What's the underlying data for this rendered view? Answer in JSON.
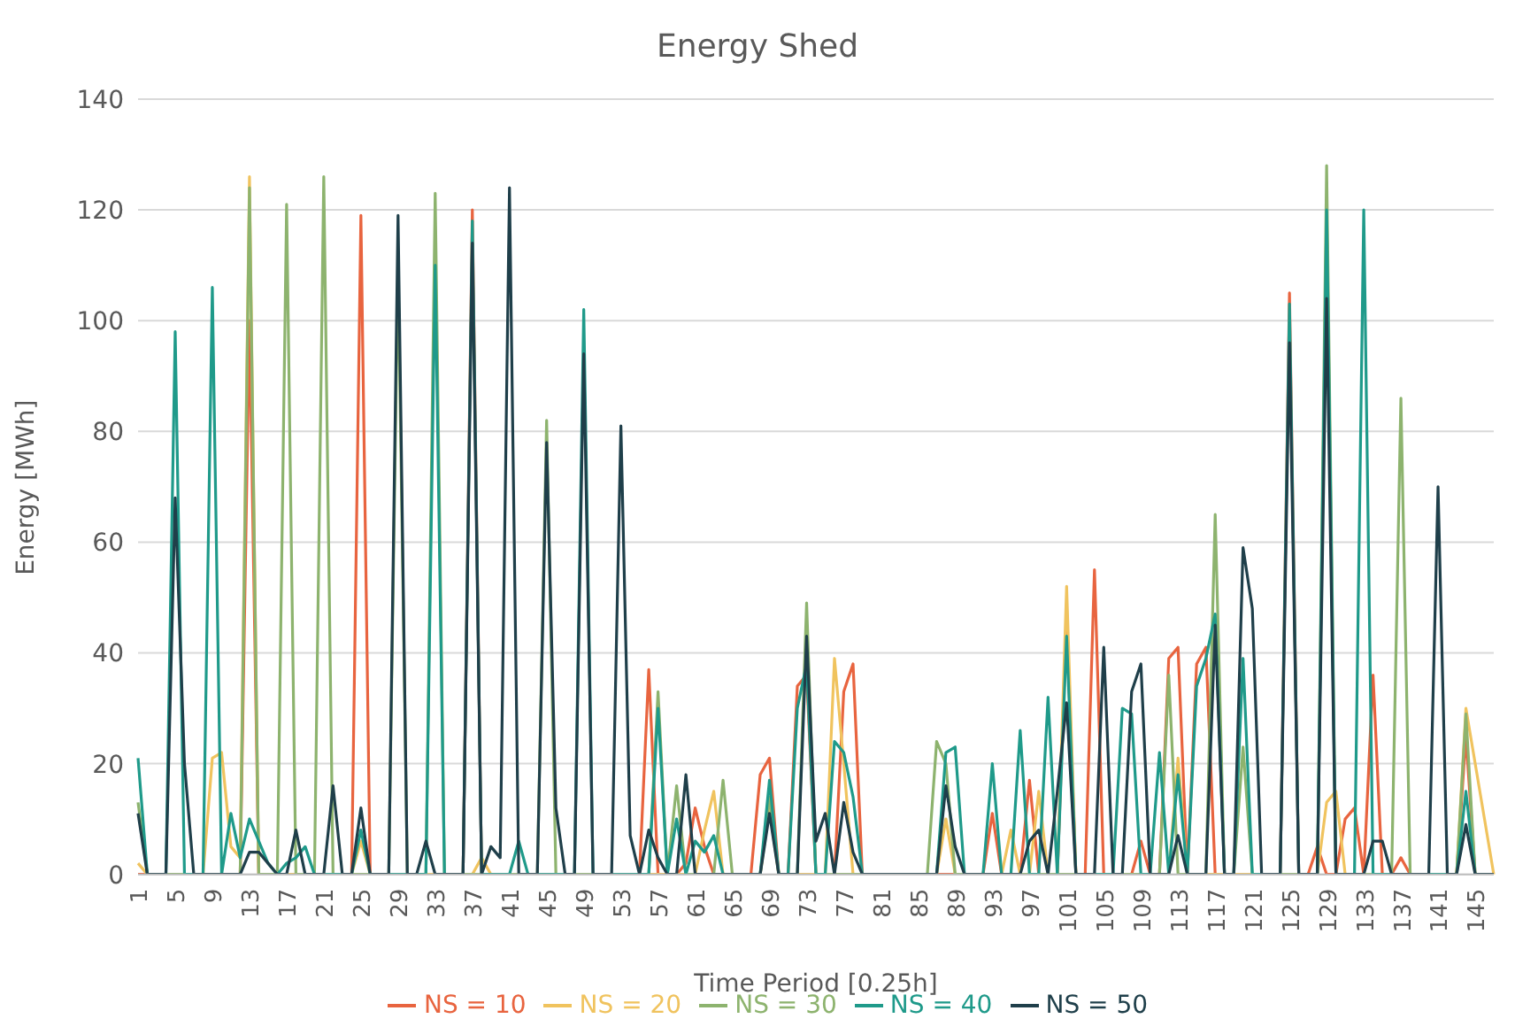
{
  "chart_data": {
    "type": "line",
    "title": "Energy Shed",
    "xlabel": "Time Period [0.25h]",
    "ylabel": "Energy [MWh]",
    "categories": [
      "1",
      null,
      null,
      null,
      "5",
      null,
      null,
      null,
      "9",
      null,
      null,
      null,
      "13",
      null,
      null,
      null,
      "17",
      null,
      null,
      null,
      "21",
      null,
      null,
      null,
      "25",
      null,
      null,
      null,
      "29",
      null,
      null,
      null,
      "33",
      null,
      null,
      null,
      "37",
      null,
      null,
      null,
      "41",
      null,
      null,
      null,
      "45",
      null,
      null,
      null,
      "49",
      null,
      null,
      null,
      "53",
      null,
      null,
      null,
      "57",
      null,
      null,
      null,
      "61",
      null,
      null,
      null,
      "65",
      null,
      null,
      null,
      "69",
      null,
      null,
      null,
      "73",
      null,
      null,
      null,
      "77",
      null,
      null,
      null,
      "81",
      null,
      null,
      null,
      "85",
      null,
      null,
      null,
      "89",
      null,
      null,
      null,
      "93",
      null,
      null,
      null,
      "97",
      null,
      null,
      null,
      "101",
      null,
      null,
      null,
      "105",
      null,
      null,
      null,
      "109",
      null,
      null,
      null,
      "113",
      null,
      null,
      null,
      "117",
      null,
      null,
      null,
      "121",
      null,
      null,
      null,
      "125",
      null,
      null,
      null,
      "129",
      null,
      null,
      null,
      "133",
      null,
      null,
      null,
      "137",
      null,
      null,
      null,
      "141",
      null,
      null,
      null,
      "145",
      null,
      null
    ],
    "series": [
      {
        "name": "NS = 10",
        "color": "#e8643f",
        "values": [
          0,
          0,
          0,
          0,
          0,
          0,
          0,
          0,
          0,
          0,
          0,
          0,
          100,
          0,
          0,
          0,
          0,
          0,
          0,
          0,
          0,
          0,
          0,
          0,
          119,
          0,
          0,
          0,
          0,
          0,
          0,
          0,
          0,
          0,
          0,
          0,
          120,
          0,
          0,
          0,
          null,
          0,
          0,
          0,
          0,
          0,
          0,
          0,
          0,
          0,
          0,
          0,
          0,
          0,
          0,
          37,
          0,
          0,
          0,
          2,
          12,
          5,
          0,
          0,
          0,
          0,
          0,
          18,
          21,
          0,
          0,
          34,
          36,
          0,
          0,
          0,
          33,
          38,
          0,
          0,
          0,
          0,
          0,
          0,
          0,
          0,
          0,
          0,
          0,
          0,
          0,
          0,
          11,
          0,
          0,
          0,
          17,
          0,
          0,
          0,
          46,
          0,
          0,
          55,
          0,
          0,
          0,
          0,
          6,
          0,
          0,
          39,
          41,
          0,
          38,
          41,
          0,
          0,
          0,
          0,
          0,
          0,
          0,
          0,
          105,
          0,
          0,
          5,
          0,
          0,
          10,
          12,
          0,
          36,
          0,
          0,
          3,
          0,
          0,
          0,
          0,
          0,
          0,
          25,
          0,
          0,
          0
        ]
      },
      {
        "name": "NS = 20",
        "color": "#f0c35e",
        "values": [
          2,
          0,
          0,
          0,
          null,
          0,
          0,
          0,
          21,
          22,
          5,
          3,
          126,
          0,
          0,
          0,
          0,
          0,
          0,
          0,
          0,
          0,
          0,
          0,
          6,
          0,
          0,
          0,
          0,
          0,
          0,
          0,
          0,
          0,
          0,
          0,
          0,
          3,
          0,
          0,
          0,
          0,
          0,
          0,
          0,
          0,
          0,
          0,
          0,
          0,
          0,
          0,
          0,
          0,
          0,
          0,
          0,
          0,
          0,
          0,
          0,
          8,
          15,
          0,
          0,
          0,
          0,
          0,
          12,
          0,
          0,
          0,
          0,
          0,
          0,
          39,
          20,
          0,
          0,
          0,
          0,
          0,
          0,
          0,
          0,
          0,
          0,
          10,
          0,
          0,
          0,
          0,
          0,
          0,
          8,
          0,
          0,
          15,
          0,
          0,
          52,
          0,
          0,
          0,
          0,
          0,
          0,
          0,
          0,
          0,
          0,
          0,
          21,
          0,
          0,
          0,
          0,
          0,
          0,
          0,
          0,
          0,
          0,
          0,
          0,
          0,
          0,
          0,
          13,
          15,
          0,
          0,
          0,
          0,
          0,
          0,
          0,
          0,
          0,
          0,
          0,
          0,
          0,
          30,
          20,
          10,
          0
        ]
      },
      {
        "name": "NS = 30",
        "color": "#8db36e",
        "values": [
          13,
          0,
          0,
          0,
          0,
          0,
          0,
          0,
          0,
          0,
          0,
          0,
          124,
          0,
          0,
          0,
          121,
          0,
          0,
          0,
          126,
          0,
          0,
          0,
          0,
          0,
          0,
          0,
          110,
          0,
          0,
          0,
          123,
          0,
          0,
          0,
          0,
          0,
          0,
          0,
          0,
          0,
          0,
          0,
          82,
          0,
          0,
          0,
          0,
          0,
          0,
          0,
          0,
          0,
          0,
          0,
          33,
          0,
          16,
          0,
          0,
          0,
          0,
          17,
          0,
          0,
          0,
          0,
          14,
          0,
          0,
          0,
          49,
          0,
          0,
          0,
          0,
          0,
          0,
          0,
          0,
          0,
          0,
          0,
          0,
          0,
          24,
          20,
          0,
          0,
          0,
          0,
          0,
          0,
          0,
          0,
          0,
          0,
          0,
          0,
          0,
          0,
          0,
          0,
          0,
          0,
          0,
          0,
          0,
          0,
          0,
          36,
          0,
          0,
          0,
          0,
          65,
          0,
          0,
          23,
          0,
          0,
          0,
          0,
          0,
          0,
          0,
          0,
          128,
          0,
          0,
          0,
          0,
          0,
          0,
          0,
          86,
          0,
          0,
          0,
          0,
          0,
          0,
          29,
          0,
          0,
          0
        ]
      },
      {
        "name": "NS = 40",
        "color": "#1f9a8a",
        "values": [
          21,
          0,
          0,
          0,
          98,
          0,
          0,
          0,
          106,
          0,
          11,
          3,
          10,
          6,
          2,
          0,
          2,
          3,
          5,
          0,
          0,
          0,
          0,
          0,
          8,
          0,
          0,
          0,
          0,
          0,
          0,
          0,
          110,
          0,
          0,
          0,
          118,
          0,
          0,
          0,
          0,
          6,
          0,
          0,
          0,
          0,
          0,
          0,
          102,
          0,
          0,
          0,
          0,
          0,
          0,
          0,
          30,
          0,
          10,
          0,
          6,
          4,
          7,
          0,
          0,
          0,
          0,
          0,
          17,
          0,
          0,
          30,
          38,
          0,
          0,
          24,
          22,
          14,
          0,
          0,
          0,
          0,
          0,
          0,
          0,
          0,
          0,
          22,
          23,
          0,
          0,
          0,
          20,
          0,
          0,
          26,
          0,
          0,
          32,
          0,
          43,
          0,
          0,
          0,
          0,
          0,
          30,
          29,
          0,
          0,
          22,
          0,
          18,
          0,
          34,
          39,
          47,
          0,
          0,
          39,
          0,
          0,
          0,
          0,
          103,
          0,
          0,
          0,
          120,
          0,
          0,
          0,
          120,
          0,
          0,
          0,
          0,
          0,
          0,
          0,
          0,
          0,
          0,
          15,
          0,
          0,
          0
        ]
      },
      {
        "name": "NS = 50",
        "color": "#1f3f4a",
        "values": [
          11,
          0,
          0,
          0,
          68,
          20,
          0,
          0,
          0,
          0,
          0,
          0,
          4,
          4,
          2,
          0,
          0,
          8,
          0,
          0,
          0,
          16,
          0,
          0,
          12,
          0,
          0,
          0,
          119,
          0,
          0,
          6,
          0,
          0,
          0,
          0,
          114,
          0,
          5,
          3,
          124,
          0,
          0,
          0,
          78,
          12,
          0,
          0,
          94,
          0,
          0,
          0,
          81,
          7,
          0,
          8,
          3,
          0,
          0,
          18,
          0,
          0,
          0,
          0,
          0,
          0,
          0,
          0,
          11,
          0,
          0,
          0,
          43,
          6,
          11,
          0,
          13,
          4,
          0,
          0,
          0,
          0,
          0,
          0,
          0,
          0,
          0,
          16,
          5,
          0,
          0,
          0,
          0,
          0,
          0,
          0,
          6,
          8,
          0,
          15,
          31,
          0,
          0,
          0,
          41,
          0,
          0,
          33,
          38,
          0,
          0,
          0,
          7,
          0,
          0,
          0,
          45,
          0,
          0,
          59,
          48,
          0,
          0,
          0,
          96,
          0,
          0,
          0,
          104,
          0,
          0,
          0,
          0,
          6,
          6,
          0,
          0,
          0,
          0,
          0,
          70,
          0,
          0,
          9,
          0,
          0,
          0
        ]
      }
    ],
    "ylim": [
      0,
      140
    ],
    "yticks": [
      0,
      20,
      40,
      60,
      80,
      100,
      120,
      140
    ],
    "grid": "y",
    "legend": "bottom",
    "marker": "none",
    "line_style": "solid"
  }
}
